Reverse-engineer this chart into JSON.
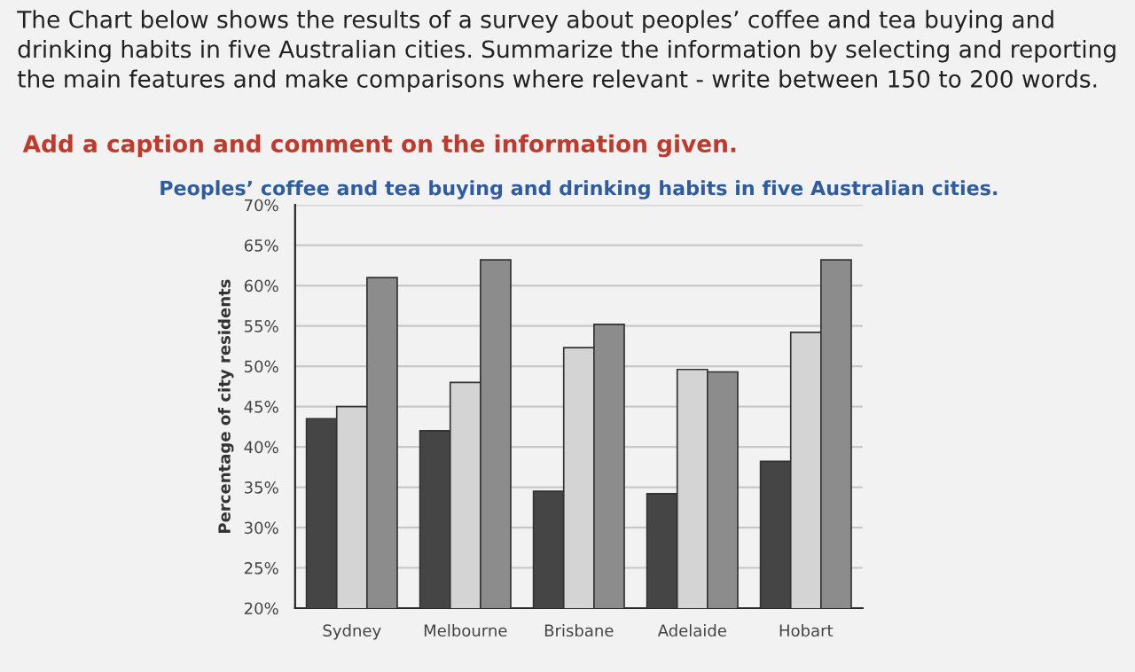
{
  "chart_data": {
    "type": "bar",
    "title": "Peoples’ coffee and tea buying and drinking habits in five Australian cities.",
    "ylabel": "Percentage of city residents",
    "annotations": [
      "The Chart below shows the results of a survey about peoples’ coffee and tea buying and drinking habits in five Australian cities. Summarize the information by selecting and reporting the main features and make comparisons where relevant - write between 150 to 200 words.",
      "Add a caption and comment on the information given."
    ],
    "categories": [
      "Sydney",
      "Melbourne",
      "Brisbane",
      "Adelaide",
      "Hobart"
    ],
    "series": [
      {
        "color": "#454545",
        "values": [
          43.5,
          42,
          34.5,
          34.2,
          38.2
        ]
      },
      {
        "color": "#d4d4d4",
        "values": [
          45,
          48,
          52.3,
          49.6,
          54.2
        ]
      },
      {
        "color": "#8c8c8c",
        "values": [
          61,
          63.2,
          55.2,
          49.3,
          63.2
        ]
      }
    ],
    "ylim": [
      20,
      70
    ],
    "yticks": [
      {
        "value": 20,
        "label": "20%"
      },
      {
        "value": 25,
        "label": "25%"
      },
      {
        "value": 30,
        "label": "30%"
      },
      {
        "value": 35,
        "label": "35%"
      },
      {
        "value": 40,
        "label": "40%"
      },
      {
        "value": 45,
        "label": "45%"
      },
      {
        "value": 50,
        "label": "50%"
      },
      {
        "value": 55,
        "label": "55%"
      },
      {
        "value": 60,
        "label": "60%"
      },
      {
        "value": 65,
        "label": "65%"
      },
      {
        "value": 70,
        "label": "70%"
      }
    ],
    "grid": "y"
  }
}
